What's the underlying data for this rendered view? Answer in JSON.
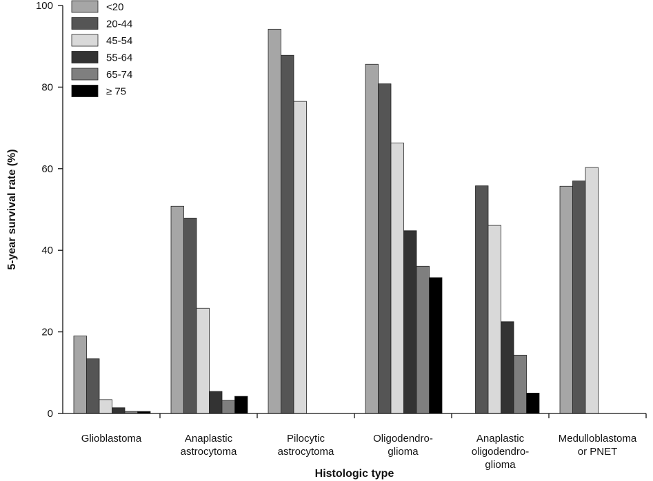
{
  "chart_data": {
    "type": "bar",
    "title": "",
    "xlabel": "Histologic type",
    "ylabel": "5-year survival rate (%)",
    "ylim": [
      0,
      100
    ],
    "yticks": [
      0,
      20,
      40,
      60,
      80,
      100
    ],
    "grid": false,
    "legend_position": "top-left",
    "categories": [
      [
        "Glioblastoma"
      ],
      [
        "Anaplastic",
        "astrocytoma"
      ],
      [
        "Pilocytic",
        "astrocytoma"
      ],
      [
        "Oligodendro-",
        "glioma"
      ],
      [
        "Anaplastic",
        "oligodendro-",
        "glioma"
      ],
      [
        "Medulloblastoma",
        "or PNET"
      ]
    ],
    "series": [
      {
        "name": "<20",
        "color": "#a6a6a6",
        "values": [
          19.0,
          50.8,
          94.2,
          85.6,
          null,
          55.7
        ]
      },
      {
        "name": "20-44",
        "color": "#555555",
        "values": [
          13.4,
          47.9,
          87.8,
          80.8,
          55.8,
          57.0
        ]
      },
      {
        "name": "45-54",
        "color": "#d9d9d9",
        "values": [
          3.4,
          25.8,
          76.5,
          66.3,
          46.1,
          60.3
        ]
      },
      {
        "name": "55-64",
        "color": "#333333",
        "values": [
          1.4,
          5.4,
          null,
          44.8,
          22.5,
          null
        ]
      },
      {
        "name": "65-74",
        "color": "#7f7f7f",
        "values": [
          0.5,
          3.2,
          null,
          36.1,
          14.3,
          null
        ]
      },
      {
        "name": "≥ 75",
        "color": "#000000",
        "values": [
          0.5,
          4.2,
          null,
          33.3,
          5.0,
          null
        ]
      }
    ]
  }
}
